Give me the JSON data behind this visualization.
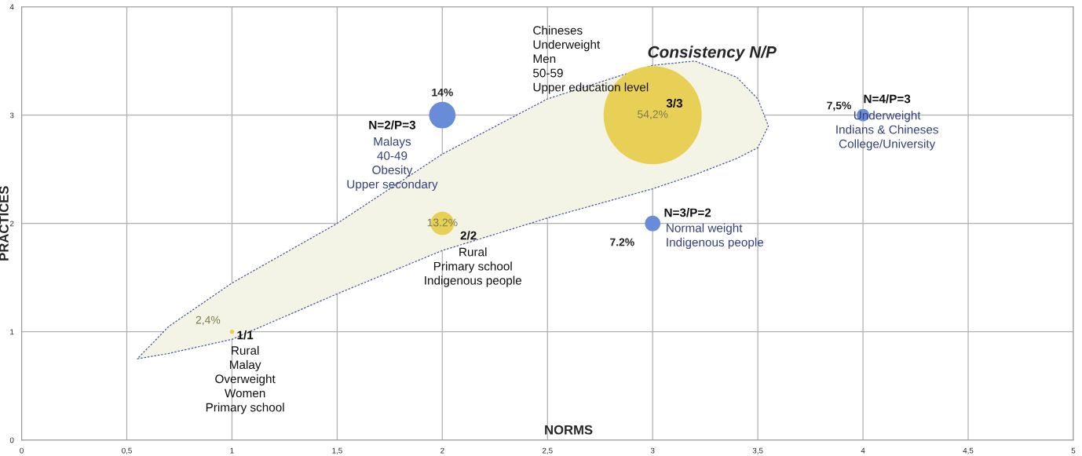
{
  "chart_data": {
    "type": "bubble",
    "xlabel": "NORMS",
    "ylabel": "PRACTICES",
    "xlim": [
      0,
      5
    ],
    "ylim": [
      0,
      4
    ],
    "xticks": [
      0,
      {
        "value": 0.5,
        "label": "0,5"
      },
      1,
      {
        "value": 1.5,
        "label": "1,5"
      },
      2,
      {
        "value": 2.5,
        "label": "2,5"
      },
      3,
      {
        "value": 3.5,
        "label": "3,5"
      },
      4,
      {
        "value": 4.5,
        "label": "4,5"
      },
      5
    ],
    "yticks": [
      0,
      1,
      2,
      3,
      4
    ],
    "grid": true,
    "legend": false,
    "series": [
      {
        "type": "area",
        "color": "#f4f4e6",
        "x": [
          0.55,
          0.7,
          1,
          1.5,
          2,
          2.5,
          3,
          3.2,
          3.4,
          3.5,
          3.55
        ],
        "values": [
          null,
          null,
          null,
          null,
          null,
          null,
          null,
          null,
          null,
          null,
          null
        ],
        "lower": [
          0.75,
          0.8,
          0.93,
          1.35,
          1.75,
          2.05,
          2.32,
          2.45,
          2.6,
          2.7,
          2.9
        ],
        "upper": [
          0.75,
          1.05,
          1.45,
          2.0,
          2.64,
          3.15,
          3.46,
          3.5,
          3.35,
          3.15,
          2.9
        ]
      },
      {
        "color": "#e8cf55",
        "x": [
          1,
          2,
          3
        ],
        "values": [
          1,
          2,
          3
        ],
        "sizes": [
          0.002,
          0.057,
          1
        ]
      },
      {
        "color": "#6a8bd8",
        "x": [
          2,
          3,
          4
        ],
        "values": [
          3,
          2,
          3
        ],
        "sizes": [
          0.073,
          0.025,
          0.016
        ]
      }
    ],
    "annotations": [
      {
        "text": "1/1",
        "x": 1,
        "y": 1
      },
      {
        "text": "Rural\nMalay\nOverweight\nWomen\nPrimary school",
        "x": 1,
        "y": 1
      },
      {
        "text": "2/2",
        "x": 2,
        "y": 2
      },
      {
        "text": "Rural\nPrimary school\nIndigenous people",
        "x": 2,
        "y": 2
      },
      {
        "text": "3/3",
        "x": 3,
        "y": 3
      },
      {
        "text": "Chineses\nUnderweight\nMen\n50-59\nUpper education level",
        "x": 3,
        "y": 3
      },
      {
        "text": "N=2/P=3",
        "x": 2,
        "y": 3
      },
      {
        "text": "Malays\n40-49\nObesity\nUpper secondary",
        "x": 2,
        "y": 3
      },
      {
        "text": "N=3/P=2",
        "x": 3,
        "y": 2
      },
      {
        "text": "Normal weight\nIndigenous people",
        "x": 3,
        "y": 2
      },
      {
        "text": "N=4/P=3",
        "x": 4,
        "y": 3
      },
      {
        "text": "Underweight\nIndians & Chineses\nCollege/University",
        "x": 4,
        "y": 3
      },
      {
        "text": "2,4%",
        "x": 1,
        "y": 1
      },
      {
        "text": "13.2%",
        "x": 2,
        "y": 2
      },
      {
        "text": "54,2%",
        "x": 3,
        "y": 3
      },
      {
        "text": "14%",
        "x": 2,
        "y": 3
      },
      {
        "text": "7.2%",
        "x": 3,
        "y": 2
      },
      {
        "text": "7,5%",
        "x": 4,
        "y": 3
      },
      "Consistency N/P"
    ]
  }
}
